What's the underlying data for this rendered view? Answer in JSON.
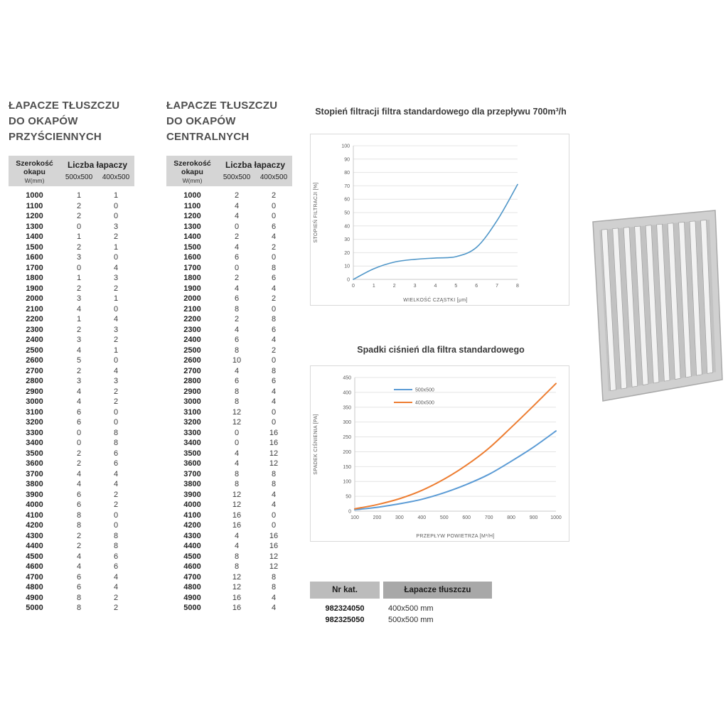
{
  "wall_table": {
    "title_lines": [
      "ŁAPACZE TŁUSZCZU",
      "DO OKAPÓW",
      "PRZYŚCIENNYCH"
    ],
    "header": {
      "width_label": "Szerokość okapu",
      "width_unit": "W(mm)",
      "count_label": "Liczba łapaczy",
      "size1": "500x500",
      "size2": "400x500"
    },
    "rows": [
      [
        1000,
        1,
        1
      ],
      [
        1100,
        2,
        0
      ],
      [
        1200,
        2,
        0
      ],
      [
        1300,
        0,
        3
      ],
      [
        1400,
        1,
        2
      ],
      [
        1500,
        2,
        1
      ],
      [
        1600,
        3,
        0
      ],
      [
        1700,
        0,
        4
      ],
      [
        1800,
        1,
        3
      ],
      [
        1900,
        2,
        2
      ],
      [
        2000,
        3,
        1
      ],
      [
        2100,
        4,
        0
      ],
      [
        2200,
        1,
        4
      ],
      [
        2300,
        2,
        3
      ],
      [
        2400,
        3,
        2
      ],
      [
        2500,
        4,
        1
      ],
      [
        2600,
        5,
        0
      ],
      [
        2700,
        2,
        4
      ],
      [
        2800,
        3,
        3
      ],
      [
        2900,
        4,
        2
      ],
      [
        3000,
        4,
        2
      ],
      [
        3100,
        6,
        0
      ],
      [
        3200,
        6,
        0
      ],
      [
        3300,
        0,
        8
      ],
      [
        3400,
        0,
        8
      ],
      [
        3500,
        2,
        6
      ],
      [
        3600,
        2,
        6
      ],
      [
        3700,
        4,
        4
      ],
      [
        3800,
        4,
        4
      ],
      [
        3900,
        6,
        2
      ],
      [
        4000,
        6,
        2
      ],
      [
        4100,
        8,
        0
      ],
      [
        4200,
        8,
        0
      ],
      [
        4300,
        2,
        8
      ],
      [
        4400,
        2,
        8
      ],
      [
        4500,
        4,
        6
      ],
      [
        4600,
        4,
        6
      ],
      [
        4700,
        6,
        4
      ],
      [
        4800,
        6,
        4
      ],
      [
        4900,
        8,
        2
      ],
      [
        5000,
        8,
        2
      ]
    ]
  },
  "central_table": {
    "title_lines": [
      "ŁAPACZE TŁUSZCZU",
      "DO OKAPÓW",
      "CENTRALNYCH"
    ],
    "header": {
      "width_label": "Szerokość okapu",
      "width_unit": "W(mm)",
      "count_label": "Liczba łapaczy",
      "size1": "500x500",
      "size2": "400x500"
    },
    "rows": [
      [
        1000,
        2,
        2
      ],
      [
        1100,
        4,
        0
      ],
      [
        1200,
        4,
        0
      ],
      [
        1300,
        0,
        6
      ],
      [
        1400,
        2,
        4
      ],
      [
        1500,
        4,
        2
      ],
      [
        1600,
        6,
        0
      ],
      [
        1700,
        0,
        8
      ],
      [
        1800,
        2,
        6
      ],
      [
        1900,
        4,
        4
      ],
      [
        2000,
        6,
        2
      ],
      [
        2100,
        8,
        0
      ],
      [
        2200,
        2,
        8
      ],
      [
        2300,
        4,
        6
      ],
      [
        2400,
        6,
        4
      ],
      [
        2500,
        8,
        2
      ],
      [
        2600,
        10,
        0
      ],
      [
        2700,
        4,
        8
      ],
      [
        2800,
        6,
        6
      ],
      [
        2900,
        8,
        4
      ],
      [
        3000,
        8,
        4
      ],
      [
        3100,
        12,
        0
      ],
      [
        3200,
        12,
        0
      ],
      [
        3300,
        0,
        16
      ],
      [
        3400,
        0,
        16
      ],
      [
        3500,
        4,
        12
      ],
      [
        3600,
        4,
        12
      ],
      [
        3700,
        8,
        8
      ],
      [
        3800,
        8,
        8
      ],
      [
        3900,
        12,
        4
      ],
      [
        4000,
        12,
        4
      ],
      [
        4100,
        16,
        0
      ],
      [
        4200,
        16,
        0
      ],
      [
        4300,
        4,
        16
      ],
      [
        4400,
        4,
        16
      ],
      [
        4500,
        8,
        12
      ],
      [
        4600,
        8,
        12
      ],
      [
        4700,
        12,
        8
      ],
      [
        4800,
        12,
        8
      ],
      [
        4900,
        16,
        4
      ],
      [
        5000,
        16,
        4
      ]
    ]
  },
  "catalog": {
    "headers": [
      "Nr kat.",
      "Łapacze tłuszczu"
    ],
    "rows": [
      [
        "982324050",
        "400x500 mm"
      ],
      [
        "982325050",
        "500x500 mm"
      ]
    ]
  },
  "filter_image_label": "grease-baffle-filter",
  "chart_data": [
    {
      "type": "line",
      "title": "Stopień filtracji filtra standardowego dla przepływu 700m³/h",
      "xlabel": "WIELKOŚĆ CZĄSTKI [μm]",
      "ylabel": "STOPIEŃ FILTRACJI [%]",
      "xlim": [
        0,
        8
      ],
      "ylim": [
        0,
        100
      ],
      "xticks": [
        0,
        1,
        2,
        3,
        4,
        5,
        6,
        7,
        8
      ],
      "yticks": [
        0,
        10,
        20,
        30,
        40,
        50,
        60,
        70,
        80,
        90,
        100
      ],
      "grid": "horizontal",
      "legend": false,
      "series": [
        {
          "name": "stopień filtracji",
          "color": "#4f96c8",
          "x": [
            0,
            1,
            2,
            3,
            4,
            5,
            6,
            7,
            8
          ],
          "y": [
            0,
            8,
            13,
            15,
            16,
            17,
            24,
            44,
            71
          ]
        }
      ]
    },
    {
      "type": "line",
      "title": "Spadki ciśnień dla filtra standardowego",
      "xlabel": "PRZEPŁYW POWIETRZA [M³/H]",
      "ylabel": "SPADEK CIŚNIENIA [PA]",
      "xlim": [
        100,
        1000
      ],
      "ylim": [
        0,
        450
      ],
      "xticks": [
        100,
        200,
        300,
        400,
        500,
        600,
        700,
        800,
        900,
        1000
      ],
      "yticks": [
        0,
        50,
        100,
        150,
        200,
        250,
        300,
        350,
        400,
        450
      ],
      "grid": "horizontal",
      "legend": true,
      "series": [
        {
          "name": "500x500",
          "color": "#5b9bd5",
          "x": [
            100,
            200,
            300,
            400,
            500,
            600,
            700,
            800,
            900,
            1000
          ],
          "y": [
            5,
            13,
            25,
            40,
            62,
            90,
            124,
            168,
            216,
            270
          ]
        },
        {
          "name": "400x500",
          "color": "#ed7d31",
          "x": [
            100,
            200,
            300,
            400,
            500,
            600,
            700,
            800,
            900,
            1000
          ],
          "y": [
            8,
            22,
            42,
            70,
            108,
            155,
            212,
            282,
            355,
            430
          ]
        }
      ]
    }
  ]
}
